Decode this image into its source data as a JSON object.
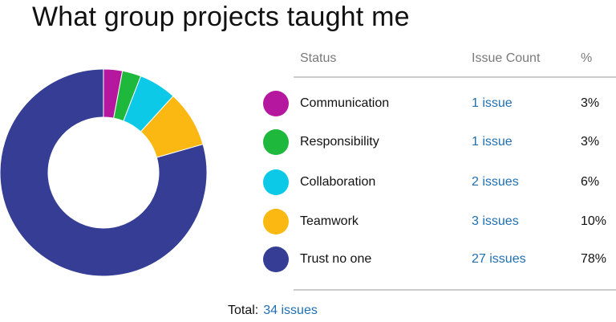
{
  "chart_data": {
    "type": "pie",
    "title": "What group projects taught me",
    "columns": {
      "status": "Status",
      "count": "Issue Count",
      "percent": "%"
    },
    "categories": [
      "Communication",
      "Responsibility",
      "Collaboration",
      "Teamwork",
      "Trust no one"
    ],
    "values": [
      1,
      1,
      2,
      3,
      27
    ],
    "rows": [
      {
        "label": "Communication",
        "value": 1,
        "count_label": "1 issue",
        "percent_label": "3%",
        "color": "#b5179e"
      },
      {
        "label": "Responsibility",
        "value": 1,
        "count_label": "1 issue",
        "percent_label": "3%",
        "color": "#1eb83c"
      },
      {
        "label": "Collaboration",
        "value": 2,
        "count_label": "2 issues",
        "percent_label": "6%",
        "color": "#0dc9e8"
      },
      {
        "label": "Teamwork",
        "value": 3,
        "count_label": "3 issues",
        "percent_label": "10%",
        "color": "#fbb812"
      },
      {
        "label": "Trust no one",
        "value": 27,
        "count_label": "27 issues",
        "percent_label": "78%",
        "color": "#353d94"
      }
    ],
    "total_label": "Total:",
    "total_value": "34 issues",
    "donut": true,
    "legend": "right"
  }
}
